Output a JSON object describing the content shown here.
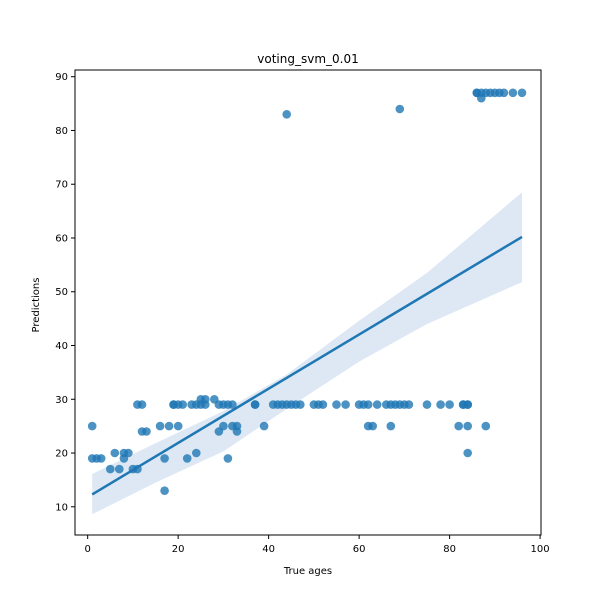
{
  "chart_data": {
    "type": "scatter",
    "title": "voting_svm_0.01",
    "xlabel": "True ages",
    "ylabel": "Predictions",
    "xlim": [
      -2.8,
      100.2
    ],
    "ylim": [
      4.75,
      91.25
    ],
    "xticks": [
      0,
      20,
      40,
      60,
      80,
      100
    ],
    "yticks": [
      10,
      20,
      30,
      40,
      50,
      60,
      70,
      80,
      90
    ],
    "grid": false,
    "legend": "none",
    "colors": {
      "points": "#1f77b4",
      "line": "#1f77b4",
      "band": "#c7d9ec"
    },
    "points": [
      [
        1,
        25
      ],
      [
        1,
        19
      ],
      [
        2,
        19
      ],
      [
        3,
        19
      ],
      [
        5,
        17
      ],
      [
        6,
        20
      ],
      [
        7,
        17
      ],
      [
        8,
        19
      ],
      [
        8,
        20
      ],
      [
        9,
        20
      ],
      [
        10,
        17
      ],
      [
        11,
        17
      ],
      [
        11,
        29
      ],
      [
        12,
        29
      ],
      [
        12,
        24
      ],
      [
        13,
        24
      ],
      [
        16,
        25
      ],
      [
        17,
        13
      ],
      [
        17,
        19
      ],
      [
        18,
        25
      ],
      [
        19,
        29
      ],
      [
        19,
        29
      ],
      [
        20,
        29
      ],
      [
        20,
        25
      ],
      [
        21,
        29
      ],
      [
        22,
        19
      ],
      [
        23,
        29
      ],
      [
        24,
        20
      ],
      [
        24,
        29
      ],
      [
        25,
        29
      ],
      [
        25,
        30
      ],
      [
        26,
        29
      ],
      [
        26,
        30
      ],
      [
        28,
        30
      ],
      [
        29,
        29
      ],
      [
        29,
        24
      ],
      [
        30,
        29
      ],
      [
        30,
        25
      ],
      [
        31,
        29
      ],
      [
        31,
        19
      ],
      [
        32,
        25
      ],
      [
        32,
        29
      ],
      [
        33,
        25
      ],
      [
        33,
        24
      ],
      [
        37,
        29
      ],
      [
        37,
        29
      ],
      [
        39,
        25
      ],
      [
        41,
        29
      ],
      [
        42,
        29
      ],
      [
        43,
        29
      ],
      [
        44,
        29
      ],
      [
        44,
        83
      ],
      [
        45,
        29
      ],
      [
        46,
        29
      ],
      [
        47,
        29
      ],
      [
        50,
        29
      ],
      [
        51,
        29
      ],
      [
        52,
        29
      ],
      [
        55,
        29
      ],
      [
        57,
        29
      ],
      [
        60,
        29
      ],
      [
        61,
        29
      ],
      [
        62,
        25
      ],
      [
        62,
        29
      ],
      [
        63,
        25
      ],
      [
        64,
        29
      ],
      [
        66,
        29
      ],
      [
        67,
        29
      ],
      [
        67,
        25
      ],
      [
        68,
        29
      ],
      [
        69,
        29
      ],
      [
        69,
        84
      ],
      [
        70,
        29
      ],
      [
        71,
        29
      ],
      [
        75,
        29
      ],
      [
        78,
        29
      ],
      [
        80,
        29
      ],
      [
        82,
        25
      ],
      [
        83,
        29
      ],
      [
        83,
        29
      ],
      [
        84,
        29
      ],
      [
        84,
        20
      ],
      [
        84,
        25
      ],
      [
        84,
        29
      ],
      [
        86,
        87
      ],
      [
        86,
        87
      ],
      [
        87,
        87
      ],
      [
        87,
        86
      ],
      [
        88,
        87
      ],
      [
        88,
        25
      ],
      [
        89,
        87
      ],
      [
        90,
        87
      ],
      [
        91,
        87
      ],
      [
        92,
        87
      ],
      [
        94,
        87
      ],
      [
        96,
        87
      ]
    ],
    "regression": {
      "x_range": [
        1,
        96
      ],
      "y_start": 12.3,
      "y_end": 60.2
    },
    "ci_band": {
      "x": [
        1,
        15,
        30,
        44,
        60,
        75,
        96
      ],
      "lower": [
        8.6,
        14.5,
        20.3,
        28.2,
        37.0,
        44.0,
        51.8
      ],
      "upper": [
        16.1,
        21.8,
        27.8,
        34.6,
        44.6,
        53.5,
        68.5
      ]
    }
  }
}
